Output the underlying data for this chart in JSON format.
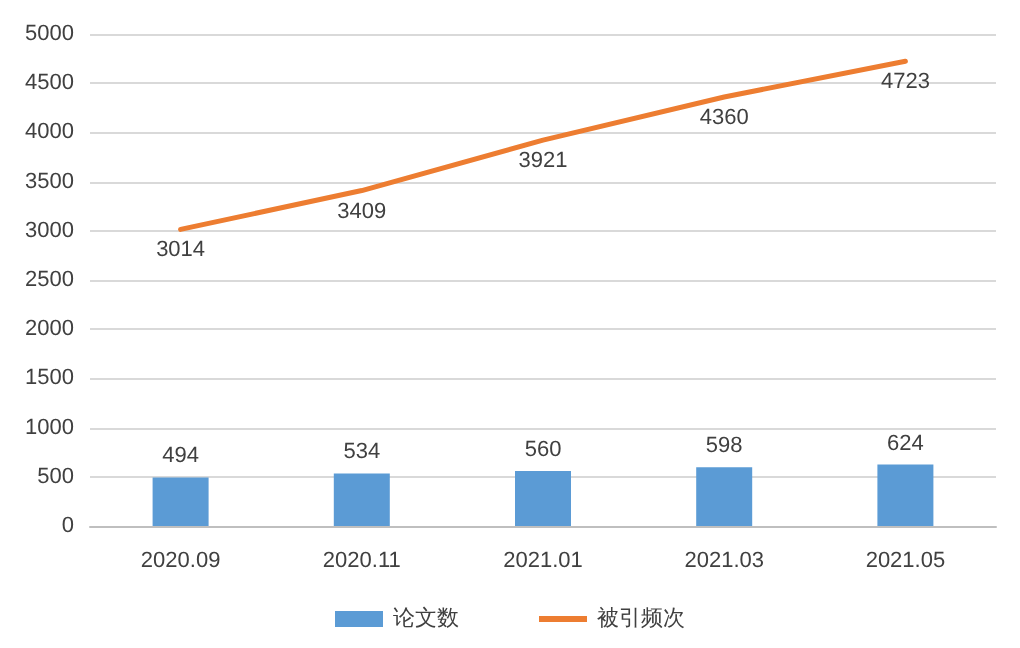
{
  "chart_data": {
    "type": "bar",
    "categories": [
      "2020.09",
      "2020.11",
      "2021.01",
      "2021.03",
      "2021.05"
    ],
    "series": [
      {
        "name": "论文数",
        "color": "#5b9bd5",
        "values": [
          494,
          534,
          560,
          598,
          624
        ]
      },
      {
        "name": "被引频次",
        "type": "line",
        "color": "#ed7d31",
        "values": [
          3014,
          3409,
          3921,
          4360,
          4723
        ]
      }
    ],
    "ylim": [
      0,
      5000
    ],
    "yticks": [
      0,
      500,
      1000,
      1500,
      2000,
      2500,
      3000,
      3500,
      4000,
      4500,
      5000
    ],
    "grid": "y",
    "legend": "bottom",
    "data_labels": true,
    "marker": "none",
    "line_style": "solid"
  }
}
